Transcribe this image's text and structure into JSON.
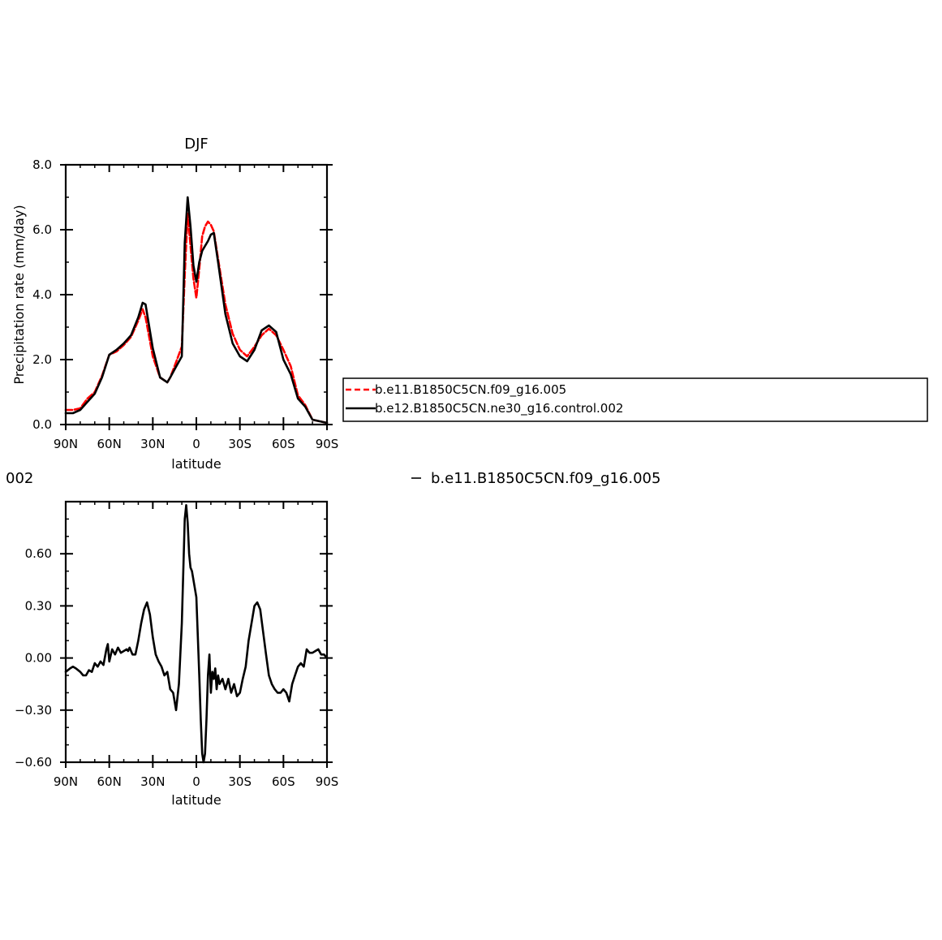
{
  "chart_data": [
    {
      "type": "line",
      "title": "DJF",
      "xlabel": "latitude",
      "ylabel": "Precipitation rate (mm/day)",
      "xlim": [
        90,
        -90
      ],
      "ylim": [
        0,
        8
      ],
      "x_ticks": [
        {
          "value": 90,
          "label": "90N"
        },
        {
          "value": 60,
          "label": "60N"
        },
        {
          "value": 30,
          "label": "30N"
        },
        {
          "value": 0,
          "label": "0"
        },
        {
          "value": -30,
          "label": "30S"
        },
        {
          "value": -60,
          "label": "60S"
        },
        {
          "value": -90,
          "label": "90S"
        }
      ],
      "y_ticks": [
        {
          "value": 0,
          "label": "0.0"
        },
        {
          "value": 2,
          "label": "2.0"
        },
        {
          "value": 4,
          "label": "4.0"
        },
        {
          "value": 6,
          "label": "6.0"
        },
        {
          "value": 8,
          "label": "8.0"
        }
      ],
      "grid": false,
      "legend_position": "right",
      "series": [
        {
          "name": "b.e11.B1850C5CN.f09_g16.005",
          "color": "#ff0000",
          "dash": "dashed",
          "x": [
            90,
            85,
            80,
            75,
            70,
            65,
            60,
            55,
            50,
            45,
            40,
            37,
            35,
            30,
            25,
            20,
            18,
            15,
            10,
            8,
            6,
            4,
            2,
            0,
            -2,
            -4,
            -6,
            -8,
            -10,
            -12,
            -15,
            -20,
            -25,
            -30,
            -35,
            -40,
            -45,
            -50,
            -55,
            -60,
            -65,
            -70,
            -75,
            -80,
            -85,
            -90
          ],
          "y": [
            0.45,
            0.45,
            0.5,
            0.8,
            1.0,
            1.5,
            2.15,
            2.25,
            2.45,
            2.7,
            3.2,
            3.55,
            3.3,
            2.1,
            1.45,
            1.3,
            1.45,
            1.8,
            2.4,
            4.6,
            6.5,
            5.5,
            4.5,
            3.9,
            4.8,
            5.8,
            6.1,
            6.25,
            6.15,
            5.95,
            5.1,
            3.7,
            2.8,
            2.3,
            2.1,
            2.4,
            2.75,
            2.95,
            2.75,
            2.3,
            1.8,
            0.9,
            0.6,
            0.15,
            0.1,
            0.05
          ]
        },
        {
          "name": "b.e12.B1850C5CN.ne30_g16.control.002",
          "color": "#000000",
          "dash": "solid",
          "x": [
            90,
            85,
            80,
            75,
            70,
            65,
            60,
            55,
            50,
            45,
            40,
            37,
            35,
            30,
            25,
            20,
            18,
            15,
            10,
            8,
            6,
            4,
            2,
            0,
            -2,
            -4,
            -6,
            -8,
            -10,
            -12,
            -15,
            -20,
            -25,
            -30,
            -35,
            -40,
            -45,
            -50,
            -55,
            -60,
            -65,
            -70,
            -75,
            -80,
            -85,
            -90
          ],
          "y": [
            0.35,
            0.35,
            0.45,
            0.7,
            0.95,
            1.45,
            2.15,
            2.3,
            2.5,
            2.75,
            3.3,
            3.75,
            3.7,
            2.35,
            1.45,
            1.3,
            1.45,
            1.7,
            2.1,
            5.6,
            7.0,
            6.1,
            4.9,
            4.4,
            5.0,
            5.35,
            5.5,
            5.65,
            5.85,
            5.9,
            5.0,
            3.4,
            2.5,
            2.1,
            1.95,
            2.3,
            2.9,
            3.05,
            2.85,
            2.0,
            1.55,
            0.8,
            0.55,
            0.15,
            0.1,
            0.05
          ]
        }
      ]
    },
    {
      "type": "line",
      "title": "",
      "xlabel": "latitude",
      "ylabel": "",
      "xlim": [
        90,
        -90
      ],
      "ylim": [
        -0.6,
        0.9
      ],
      "x_ticks": [
        {
          "value": 90,
          "label": "90N"
        },
        {
          "value": 60,
          "label": "60N"
        },
        {
          "value": 30,
          "label": "30N"
        },
        {
          "value": 0,
          "label": "0"
        },
        {
          "value": -30,
          "label": "30S"
        },
        {
          "value": -60,
          "label": "60S"
        },
        {
          "value": -90,
          "label": "90S"
        }
      ],
      "y_ticks": [
        {
          "value": 0.6,
          "label": "0.60"
        },
        {
          "value": 0.3,
          "label": "0.30"
        },
        {
          "value": 0.0,
          "label": "0.00"
        },
        {
          "value": -0.3,
          "label": "−0.30"
        },
        {
          "value": -0.6,
          "label": "−0.60"
        }
      ],
      "grid": false,
      "series": [
        {
          "color": "#000000",
          "dash": "solid",
          "x": [
            90,
            87,
            85,
            83,
            80,
            78,
            76,
            74,
            72,
            70,
            68,
            66,
            64,
            62,
            61,
            60,
            58,
            56,
            54,
            52,
            50,
            48,
            47,
            46,
            44,
            42,
            40,
            38,
            36,
            34,
            32,
            30,
            28,
            26,
            24,
            22,
            20,
            18,
            16,
            14,
            12,
            10,
            9,
            8,
            7,
            6,
            5,
            4,
            3,
            2,
            0,
            -2,
            -3,
            -4,
            -5,
            -6,
            -7,
            -8,
            -9,
            -10,
            -11,
            -12,
            -13,
            -14,
            -15,
            -16,
            -18,
            -20,
            -22,
            -24,
            -26,
            -28,
            -30,
            -32,
            -34,
            -36,
            -38,
            -40,
            -42,
            -44,
            -46,
            -48,
            -50,
            -52,
            -54,
            -56,
            -58,
            -60,
            -62,
            -64,
            -66,
            -68,
            -70,
            -72,
            -74,
            -76,
            -78,
            -80,
            -82,
            -84,
            -86,
            -88,
            -90
          ],
          "y": [
            -0.08,
            -0.06,
            -0.05,
            -0.06,
            -0.08,
            -0.1,
            -0.1,
            -0.07,
            -0.08,
            -0.03,
            -0.05,
            -0.02,
            -0.04,
            0.05,
            0.08,
            -0.02,
            0.05,
            0.02,
            0.06,
            0.03,
            0.04,
            0.05,
            0.04,
            0.06,
            0.02,
            0.02,
            0.1,
            0.2,
            0.28,
            0.32,
            0.25,
            0.12,
            0.02,
            -0.02,
            -0.05,
            -0.1,
            -0.08,
            -0.18,
            -0.2,
            -0.3,
            -0.15,
            0.2,
            0.5,
            0.8,
            0.88,
            0.78,
            0.6,
            0.52,
            0.5,
            0.45,
            0.35,
            -0.1,
            -0.35,
            -0.55,
            -0.6,
            -0.55,
            -0.35,
            -0.1,
            0.02,
            -0.2,
            -0.08,
            -0.12,
            -0.06,
            -0.18,
            -0.1,
            -0.15,
            -0.12,
            -0.18,
            -0.12,
            -0.2,
            -0.15,
            -0.22,
            -0.2,
            -0.12,
            -0.05,
            0.1,
            0.2,
            0.3,
            0.32,
            0.28,
            0.15,
            0.02,
            -0.1,
            -0.15,
            -0.18,
            -0.2,
            -0.2,
            -0.18,
            -0.2,
            -0.25,
            -0.15,
            -0.1,
            -0.05,
            -0.03,
            -0.05,
            0.05,
            0.03,
            0.03,
            0.04,
            0.05,
            0.02,
            0.02,
            0.0
          ]
        }
      ]
    }
  ],
  "top_text_left": "002",
  "top_text_right": "b.e11.B1850C5CN.f09_g16.005"
}
